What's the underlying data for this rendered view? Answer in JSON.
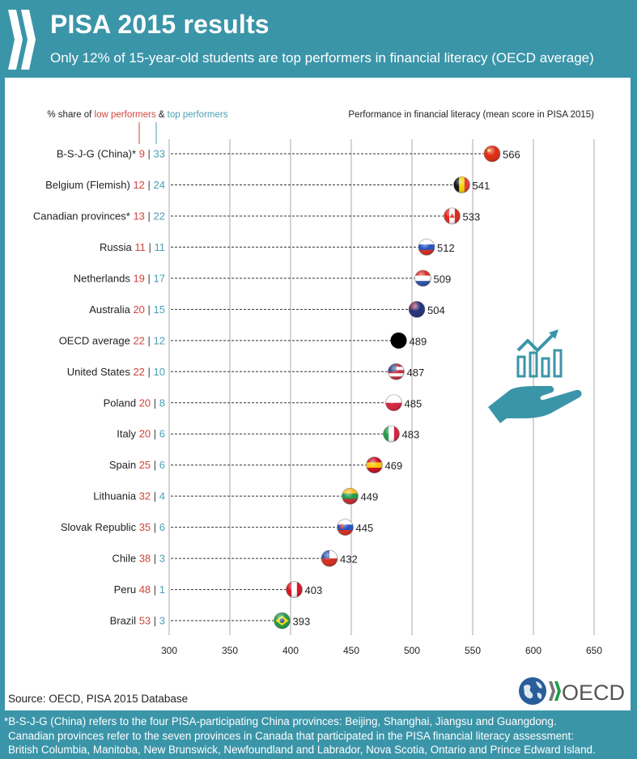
{
  "header": {
    "title": "PISA 2015 results",
    "subtitle": "Only 12% of 15-year-old students are top performers in financial literacy (OECD average)"
  },
  "colors": {
    "brand_teal": "#3b95a9",
    "low_performers": "#d2453d",
    "top_performers": "#4a9fb5",
    "oecd_average_marker": "#000000"
  },
  "legend": {
    "prefix": "% share of ",
    "low_label": "low performers",
    "amp": " & ",
    "top_label": "top performers"
  },
  "chart_data": {
    "type": "scatter",
    "title": "Performance in financial literacy (mean score in PISA 2015)",
    "xlabel": "",
    "ylabel": "",
    "xlim": [
      300,
      650
    ],
    "x_ticks": [
      300,
      350,
      400,
      450,
      500,
      550,
      600,
      650
    ],
    "grid": true,
    "categories": [
      "B-S-J-G (China)*",
      "Belgium (Flemish)",
      "Canadian provinces*",
      "Russia",
      "Netherlands",
      "Australia",
      "OECD average",
      "United States",
      "Poland",
      "Italy",
      "Spain",
      "Lithuania",
      "Slovak Republic",
      "Chile",
      "Peru",
      "Brazil"
    ],
    "series": [
      {
        "name": "Mean score in financial literacy",
        "values": [
          566,
          541,
          533,
          512,
          509,
          504,
          489,
          487,
          485,
          483,
          469,
          449,
          445,
          432,
          403,
          393
        ]
      },
      {
        "name": "% low performers",
        "values": [
          9,
          12,
          13,
          11,
          19,
          20,
          22,
          22,
          20,
          20,
          25,
          32,
          35,
          38,
          48,
          53
        ]
      },
      {
        "name": "% top performers",
        "values": [
          33,
          24,
          22,
          11,
          17,
          15,
          12,
          10,
          8,
          6,
          6,
          4,
          6,
          3,
          1,
          3
        ]
      }
    ],
    "markers": [
      "flag-china",
      "flag-belgium",
      "flag-canada",
      "flag-russia",
      "flag-netherlands",
      "flag-australia",
      "black-dot",
      "flag-usa",
      "flag-poland",
      "flag-italy",
      "flag-spain",
      "flag-lithuania",
      "flag-slovakia",
      "flag-chile",
      "flag-peru",
      "flag-brazil"
    ]
  },
  "source": "Source: OECD, PISA 2015 Database",
  "logo_text": "OECD",
  "footnotes": [
    "*B-S-J-G (China) refers to the four PISA-participating China provinces: Beijing, Shanghai, Jiangsu and Guangdong.",
    "Canadian provinces refer to the seven provinces in Canada that participated in the PISA financial literacy assessment:",
    "British Columbia, Manitoba, New Brunswick, Newfoundland and Labrador, Nova Scotia, Ontario and Prince Edward Island."
  ]
}
